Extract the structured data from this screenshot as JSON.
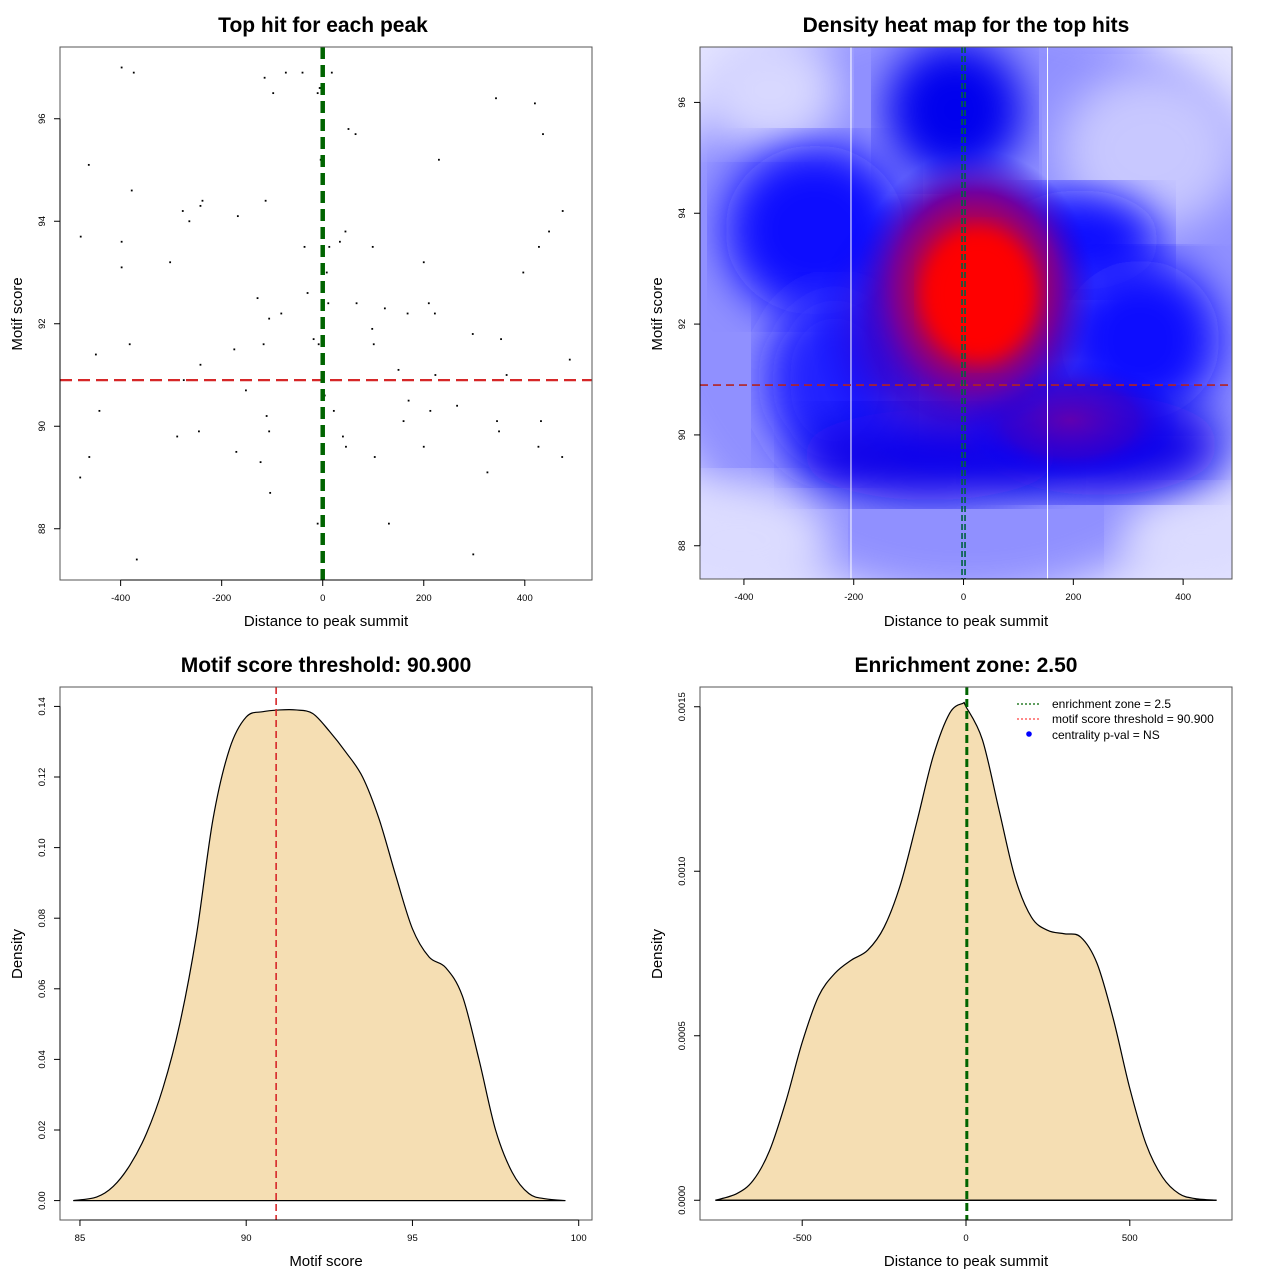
{
  "chart_data": [
    {
      "id": "scatter",
      "type": "scatter",
      "title": "Top hit for each peak",
      "xlabel": "Distance to peak summit",
      "ylabel": "Motif score",
      "xlim": [
        -520,
        533
      ],
      "ylim": [
        87.0,
        97.4
      ],
      "xticks": [
        -400,
        -200,
        0,
        200,
        400
      ],
      "yticks": [
        88,
        90,
        92,
        94,
        96
      ],
      "xtick_labels": [
        "-400",
        "-200",
        "0",
        "200",
        "400"
      ],
      "ytick_labels": [
        "88",
        "90",
        "92",
        "94",
        "96"
      ],
      "vline": {
        "x": 0,
        "color": "#006400",
        "style": "dashed"
      },
      "hline": {
        "y": 90.9,
        "color": "#d62728",
        "style": "dashed"
      },
      "point_color": "#000000",
      "points": [
        [
          -398,
          97.0
        ],
        [
          -374,
          96.9
        ],
        [
          -115,
          96.8
        ],
        [
          -73,
          96.9
        ],
        [
          -40,
          96.9
        ],
        [
          18,
          96.9
        ],
        [
          -98,
          96.5
        ],
        [
          -10,
          96.5
        ],
        [
          -6,
          96.6
        ],
        [
          51,
          95.8
        ],
        [
          65,
          95.7
        ],
        [
          343,
          96.4
        ],
        [
          420,
          96.3
        ],
        [
          436,
          95.7
        ],
        [
          230,
          95.2
        ],
        [
          -463,
          95.1
        ],
        [
          -378,
          94.6
        ],
        [
          -398,
          93.6
        ],
        [
          -479,
          93.7
        ],
        [
          -277,
          94.2
        ],
        [
          -113,
          94.4
        ],
        [
          -168,
          94.1
        ],
        [
          -242,
          94.3
        ],
        [
          -238,
          94.4
        ],
        [
          -264,
          94.0
        ],
        [
          -2,
          95.1
        ],
        [
          -4,
          95.2
        ],
        [
          45,
          93.8
        ],
        [
          34,
          93.6
        ],
        [
          -36,
          93.5
        ],
        [
          13,
          93.5
        ],
        [
          428,
          93.5
        ],
        [
          448,
          93.8
        ],
        [
          475,
          94.2
        ],
        [
          397,
          93.0
        ],
        [
          99,
          93.5
        ],
        [
          200,
          93.2
        ],
        [
          -302,
          93.2
        ],
        [
          -398,
          93.1
        ],
        [
          -30,
          92.6
        ],
        [
          -106,
          92.1
        ],
        [
          -82,
          92.2
        ],
        [
          -129,
          92.5
        ],
        [
          8,
          93.0
        ],
        [
          11,
          92.4
        ],
        [
          67,
          92.4
        ],
        [
          123,
          92.3
        ],
        [
          210,
          92.4
        ],
        [
          222,
          92.2
        ],
        [
          168,
          92.2
        ],
        [
          98,
          91.9
        ],
        [
          101,
          91.6
        ],
        [
          297,
          91.8
        ],
        [
          353,
          91.7
        ],
        [
          -117,
          91.6
        ],
        [
          -175,
          91.5
        ],
        [
          -242,
          91.2
        ],
        [
          -449,
          91.4
        ],
        [
          -382,
          91.6
        ],
        [
          -18,
          91.7
        ],
        [
          -8,
          91.6
        ],
        [
          150,
          91.1
        ],
        [
          223,
          91.0
        ],
        [
          364,
          91.0
        ],
        [
          489,
          91.3
        ],
        [
          -275,
          90.9
        ],
        [
          -152,
          90.7
        ],
        [
          4,
          90.6
        ],
        [
          -442,
          90.3
        ],
        [
          -111,
          90.2
        ],
        [
          22,
          90.3
        ],
        [
          170,
          90.5
        ],
        [
          213,
          90.3
        ],
        [
          266,
          90.4
        ],
        [
          160,
          90.1
        ],
        [
          -106,
          89.9
        ],
        [
          -245,
          89.9
        ],
        [
          -288,
          89.8
        ],
        [
          40,
          89.8
        ],
        [
          46,
          89.6
        ],
        [
          103,
          89.4
        ],
        [
          200,
          89.6
        ],
        [
          -462,
          89.4
        ],
        [
          -171,
          89.5
        ],
        [
          -123,
          89.3
        ],
        [
          -480,
          89.0
        ],
        [
          345,
          90.1
        ],
        [
          349,
          89.9
        ],
        [
          432,
          90.1
        ],
        [
          427,
          89.6
        ],
        [
          474,
          89.4
        ],
        [
          326,
          89.1
        ],
        [
          -104,
          88.7
        ],
        [
          -10,
          88.1
        ],
        [
          131,
          88.1
        ],
        [
          -368,
          87.4
        ],
        [
          298,
          87.5
        ]
      ]
    },
    {
      "id": "heatmap",
      "type": "heatmap",
      "title": "Density heat map for the top hits",
      "xlabel": "Distance to peak summit",
      "ylabel": "Motif score",
      "xlim": [
        -480,
        489
      ],
      "ylim": [
        87.4,
        97.0
      ],
      "xticks": [
        -400,
        -200,
        0,
        200,
        400
      ],
      "yticks": [
        88,
        90,
        92,
        94,
        96
      ],
      "xtick_labels": [
        "-400",
        "-200",
        "0",
        "200",
        "400"
      ],
      "ytick_labels": [
        "88",
        "90",
        "92",
        "94",
        "96"
      ],
      "colormap": [
        "#ffffff",
        "#0000ff",
        "#ff0000"
      ],
      "density_peak": {
        "x": 20,
        "y": 92.5
      },
      "enrichment_bounds": [
        -205,
        153
      ],
      "vline": {
        "x": 0,
        "color": "#006400",
        "style": "dashed"
      },
      "hline": {
        "y": 90.9,
        "color": "#b22222",
        "style": "dashed"
      }
    },
    {
      "id": "score-density",
      "type": "area",
      "title": "Motif score threshold: 90.900",
      "xlabel": "Motif score",
      "ylabel": "Density",
      "xlim": [
        84.4,
        100.4
      ],
      "ylim": [
        -0.0055,
        0.1455
      ],
      "xticks": [
        85,
        90,
        95,
        100
      ],
      "yticks": [
        0,
        0.02,
        0.04,
        0.06,
        0.08,
        0.1,
        0.12,
        0.14
      ],
      "xtick_labels": [
        "85",
        "90",
        "95",
        "100"
      ],
      "ytick_labels": [
        "0.00",
        "0.02",
        "0.04",
        "0.06",
        "0.08",
        "0.10",
        "0.12",
        "0.14"
      ],
      "fill": "#f5deb3",
      "threshold_line": {
        "x": 90.9,
        "color": "#d62728",
        "style": "dashed"
      },
      "x": [
        84.8,
        85.5,
        86.0,
        86.5,
        87.0,
        87.5,
        88.0,
        88.5,
        89.0,
        89.5,
        90.0,
        90.5,
        91.0,
        91.5,
        92.0,
        92.5,
        93.0,
        93.5,
        94.0,
        94.5,
        95.0,
        95.5,
        96.0,
        96.5,
        97.0,
        97.5,
        98.0,
        98.5,
        99.0,
        99.6
      ],
      "y": [
        0.0,
        0.001,
        0.004,
        0.01,
        0.019,
        0.032,
        0.05,
        0.075,
        0.108,
        0.128,
        0.137,
        0.1385,
        0.139,
        0.139,
        0.138,
        0.133,
        0.127,
        0.12,
        0.108,
        0.092,
        0.077,
        0.069,
        0.066,
        0.058,
        0.04,
        0.02,
        0.008,
        0.002,
        0.0005,
        0.0
      ]
    },
    {
      "id": "distance-density",
      "type": "area",
      "title": "Enrichment zone: 2.50",
      "xlabel": "Distance to peak summit",
      "ylabel": "Density",
      "xlim": [
        -812,
        812
      ],
      "ylim": [
        -6e-05,
        0.00156
      ],
      "xticks": [
        -500,
        0,
        500
      ],
      "yticks": [
        0,
        0.0005,
        0.001,
        0.0015
      ],
      "xtick_labels": [
        "-500",
        "0",
        "500"
      ],
      "ytick_labels": [
        "0.0000",
        "0.0005",
        "0.0010",
        "0.0015"
      ],
      "fill": "#f5deb3",
      "enrichment_line": {
        "x": 2.5,
        "color": "#006400",
        "style": "dashed"
      },
      "x": [
        -765,
        -700,
        -650,
        -600,
        -550,
        -500,
        -450,
        -400,
        -350,
        -300,
        -250,
        -200,
        -150,
        -100,
        -50,
        -10,
        0,
        50,
        100,
        150,
        200,
        250,
        300,
        350,
        400,
        450,
        500,
        550,
        600,
        650,
        700,
        765
      ],
      "y": [
        0.0,
        2e-05,
        6e-05,
        0.00015,
        0.0003,
        0.00048,
        0.00062,
        0.00069,
        0.00073,
        0.00076,
        0.00083,
        0.00096,
        0.00115,
        0.00135,
        0.00148,
        0.00151,
        0.0015,
        0.0014,
        0.00119,
        0.00098,
        0.00086,
        0.00082,
        0.00081,
        0.0008,
        0.00072,
        0.00055,
        0.00034,
        0.00017,
        7e-05,
        2e-05,
        5e-06,
        0.0
      ]
    }
  ],
  "legend": {
    "position": "top-right",
    "items": [
      {
        "label": "enrichment zone = 2.5",
        "symbol": "dotted-line",
        "color": "#006400"
      },
      {
        "label": "motif score threshold = 90.900",
        "symbol": "dotted-line",
        "color": "#ff4040"
      },
      {
        "label": "centrality p-val = NS",
        "symbol": "dot",
        "color": "#0000ff"
      }
    ]
  }
}
